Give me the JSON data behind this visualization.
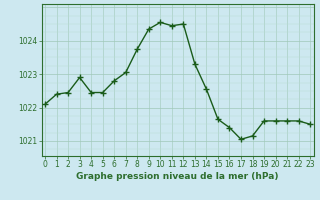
{
  "x": [
    0,
    1,
    2,
    3,
    4,
    5,
    6,
    7,
    8,
    9,
    10,
    11,
    12,
    13,
    14,
    15,
    16,
    17,
    18,
    19,
    20,
    21,
    22,
    23
  ],
  "y": [
    1022.1,
    1022.4,
    1022.45,
    1022.9,
    1022.45,
    1022.45,
    1022.8,
    1023.05,
    1023.75,
    1024.35,
    1024.55,
    1024.45,
    1024.5,
    1023.3,
    1022.55,
    1021.65,
    1021.4,
    1021.05,
    1021.15,
    1021.6,
    1021.6,
    1021.6,
    1021.6,
    1021.5
  ],
  "line_color": "#1a5c1a",
  "marker": "+",
  "marker_size": 4,
  "linewidth": 1.0,
  "background_color": "#cde8f0",
  "grid_color_major": "#a0c8b8",
  "grid_color_minor": "#b8ddd0",
  "xlabel": "Graphe pression niveau de la mer (hPa)",
  "xlabel_fontsize": 6.5,
  "yticks": [
    1021,
    1022,
    1023,
    1024
  ],
  "xticks": [
    0,
    1,
    2,
    3,
    4,
    5,
    6,
    7,
    8,
    9,
    10,
    11,
    12,
    13,
    14,
    15,
    16,
    17,
    18,
    19,
    20,
    21,
    22,
    23
  ],
  "ylim": [
    1020.55,
    1025.1
  ],
  "xlim": [
    -0.3,
    23.3
  ],
  "tick_fontsize": 5.5,
  "border_color": "#2e6e2e",
  "axis_color": "#2e6e2e"
}
